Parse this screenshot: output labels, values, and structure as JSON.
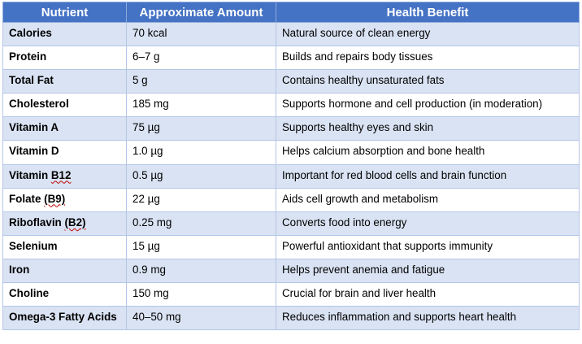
{
  "table": {
    "headers": [
      "Nutrient",
      "Approximate Amount",
      "Health Benefit"
    ],
    "rows": [
      {
        "nutrient": "Calories",
        "amount": "70 kcal",
        "benefit": "Natural source of clean energy"
      },
      {
        "nutrient": "Protein",
        "amount": "6–7 g",
        "benefit": "Builds and repairs body tissues"
      },
      {
        "nutrient": "Total Fat",
        "amount": "5 g",
        "benefit": "Contains healthy unsaturated fats"
      },
      {
        "nutrient": "Cholesterol",
        "amount": "185 mg",
        "benefit": "Supports hormone and cell production (in moderation)"
      },
      {
        "nutrient": "Vitamin A",
        "amount": "75 µg",
        "benefit": "Supports healthy eyes and skin"
      },
      {
        "nutrient": "Vitamin D",
        "amount": "1.0 µg",
        "benefit": "Helps calcium absorption and bone health"
      },
      {
        "nutrient": "Vitamin B12",
        "amount": "0.5 µg",
        "benefit": "Important for red blood cells and brain function"
      },
      {
        "nutrient": "Folate (B9)",
        "amount": "22 µg",
        "benefit": "Aids cell growth and metabolism"
      },
      {
        "nutrient": "Riboflavin (B2)",
        "amount": "0.25 mg",
        "benefit": "Converts food into energy"
      },
      {
        "nutrient": "Selenium",
        "amount": "15 µg",
        "benefit": "Powerful antioxidant that supports immunity"
      },
      {
        "nutrient": "Iron",
        "amount": "0.9 mg",
        "benefit": "Helps prevent anemia and fatigue"
      },
      {
        "nutrient": "Choline",
        "amount": "150 mg",
        "benefit": "Crucial for brain and liver health"
      },
      {
        "nutrient": "Omega-3 Fatty Acids",
        "amount": "40–50 mg",
        "benefit": "Reduces inflammation and supports heart health"
      }
    ]
  },
  "colors": {
    "header_bg": "#4472c4",
    "header_text": "#ffffff",
    "band_row": "#dae3f3",
    "plain_row": "#ffffff",
    "border": "#b4c6e7",
    "spellcheck": "#c00000"
  }
}
